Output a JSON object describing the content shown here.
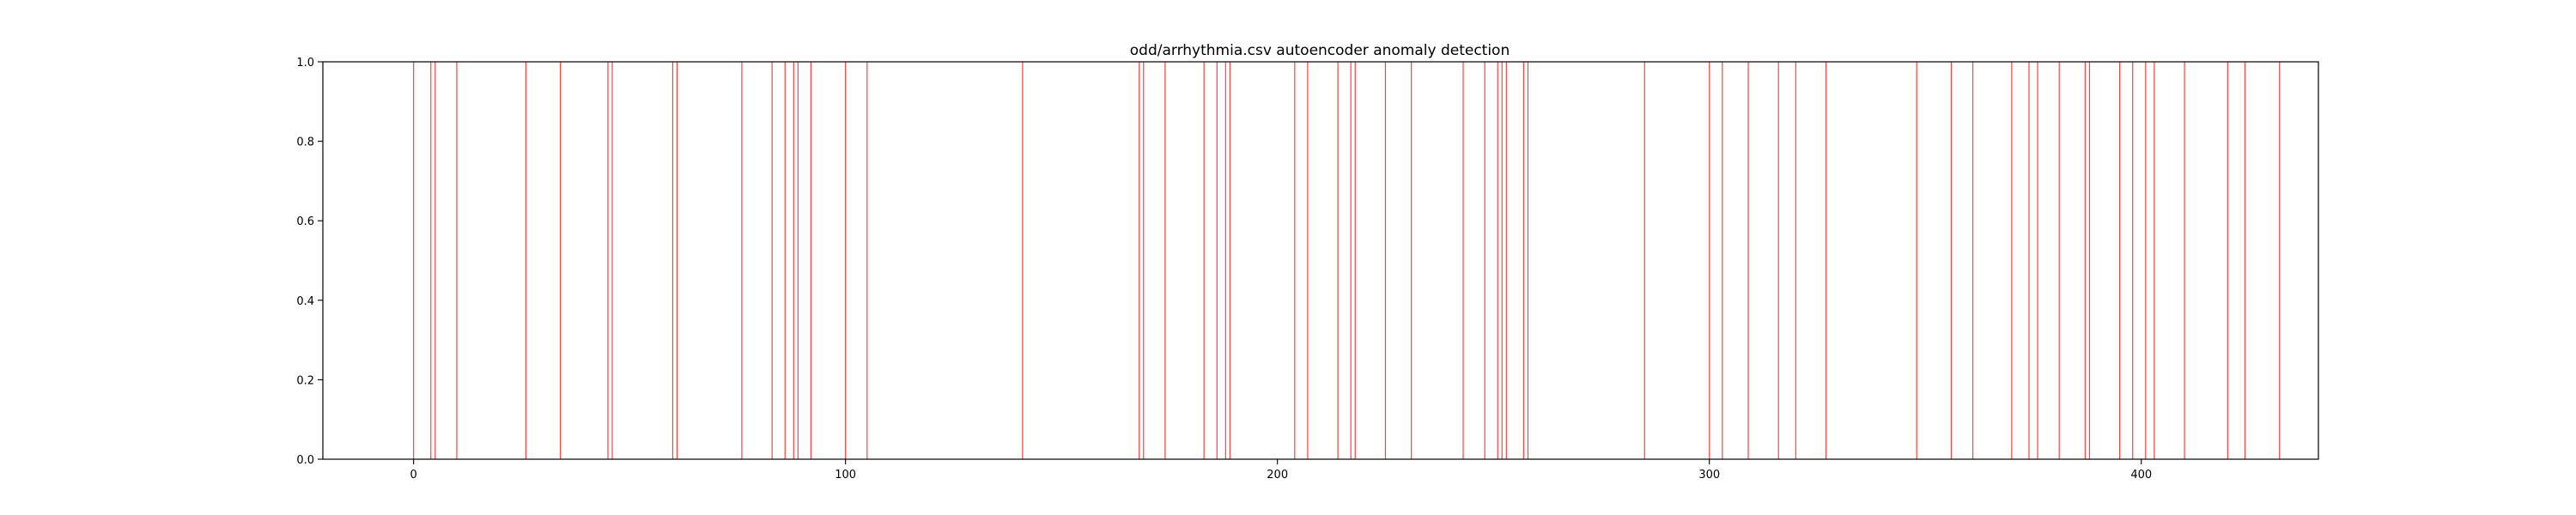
{
  "chart_data": {
    "type": "bar",
    "title": "odd/arrhythmia.csv autoencoder anomaly detection",
    "xlabel": "",
    "ylabel": "",
    "xlim": [
      -21,
      441
    ],
    "ylim": [
      0.0,
      1.0
    ],
    "x_ticks": [
      0,
      100,
      200,
      300,
      400
    ],
    "y_ticks": [
      "0.0",
      "0.2",
      "0.4",
      "0.6",
      "0.8",
      "1.0"
    ],
    "grid": false,
    "legend": "none",
    "mark_color": "#ff0000",
    "anomaly_indices": [
      0,
      4,
      5,
      10,
      26,
      34,
      45,
      46,
      60,
      61,
      76,
      83,
      86,
      88,
      89,
      92,
      100,
      105,
      141,
      168,
      169,
      174,
      183,
      186,
      188,
      189,
      204,
      207,
      214,
      217,
      218,
      225,
      231,
      243,
      248,
      251,
      252,
      253,
      257,
      258,
      285,
      300,
      303,
      309,
      316,
      320,
      327,
      348,
      356,
      361,
      370,
      374,
      376,
      381,
      387,
      388,
      395,
      398,
      401,
      403,
      410,
      420,
      424,
      432
    ],
    "values": 1.0
  }
}
